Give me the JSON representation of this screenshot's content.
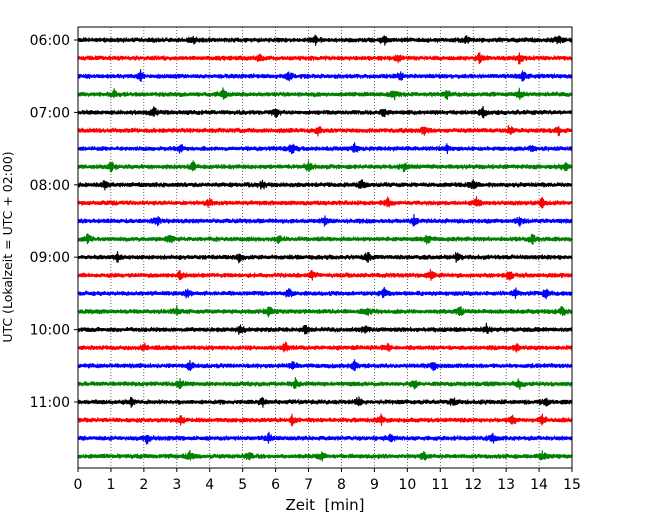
{
  "chart_data": {
    "type": "line",
    "title": "",
    "xlabel": "Zeit  [min]",
    "ylabel": "UTC (Lokalzeit = UTC + 02:00)",
    "xlim": [
      0,
      15
    ],
    "x_ticks": [
      0,
      1,
      2,
      3,
      4,
      5,
      6,
      7,
      8,
      9,
      10,
      11,
      12,
      13,
      14,
      15
    ],
    "x_tick_labels": [
      "0",
      "1",
      "2",
      "3",
      "4",
      "5",
      "6",
      "7",
      "8",
      "9",
      "10",
      "11",
      "12",
      "13",
      "14",
      "15"
    ],
    "y_tick_labels": [
      "06:00",
      "07:00",
      "08:00",
      "09:00",
      "10:00",
      "11:00"
    ],
    "grid": {
      "x": true,
      "style": "dotted",
      "y": false
    },
    "trace_colors": [
      "#000000",
      "#ff0000",
      "#0000ff",
      "#008000"
    ],
    "traces_per_hour": 4,
    "traces": [
      {
        "time": "06:00",
        "color": "#000000",
        "events_min": [
          3.5,
          7.2,
          9.3,
          11.8,
          14.6
        ]
      },
      {
        "time": "06:15",
        "color": "#ff0000",
        "events_min": [
          5.5,
          9.7,
          12.2,
          13.4
        ]
      },
      {
        "time": "06:30",
        "color": "#0000ff",
        "events_min": [
          1.9,
          6.4,
          9.8,
          13.5
        ]
      },
      {
        "time": "06:45",
        "color": "#008000",
        "events_min": [
          1.1,
          4.4,
          9.6,
          11.2,
          13.4
        ]
      },
      {
        "time": "07:00",
        "color": "#000000",
        "events_min": [
          2.3,
          6.0,
          9.3,
          12.3
        ]
      },
      {
        "time": "07:15",
        "color": "#ff0000",
        "events_min": [
          7.3,
          10.5,
          13.1,
          14.6
        ]
      },
      {
        "time": "07:30",
        "color": "#0000ff",
        "events_min": [
          3.1,
          6.5,
          8.4,
          11.2,
          13.8
        ]
      },
      {
        "time": "07:45",
        "color": "#008000",
        "events_min": [
          1.0,
          3.5,
          7.0,
          9.9,
          14.8
        ]
      },
      {
        "time": "08:00",
        "color": "#000000",
        "events_min": [
          0.8,
          5.6,
          8.6,
          12.0
        ]
      },
      {
        "time": "08:15",
        "color": "#ff0000",
        "events_min": [
          4.0,
          9.4,
          12.1,
          14.1
        ]
      },
      {
        "time": "08:30",
        "color": "#0000ff",
        "events_min": [
          2.4,
          7.5,
          10.2,
          13.4
        ]
      },
      {
        "time": "08:45",
        "color": "#008000",
        "events_min": [
          0.3,
          2.8,
          6.1,
          10.6,
          13.8
        ]
      },
      {
        "time": "09:00",
        "color": "#000000",
        "events_min": [
          1.2,
          4.9,
          8.8,
          11.5
        ]
      },
      {
        "time": "09:15",
        "color": "#ff0000",
        "events_min": [
          3.1,
          7.1,
          10.7,
          13.1
        ]
      },
      {
        "time": "09:30",
        "color": "#0000ff",
        "events_min": [
          3.3,
          6.4,
          9.3,
          13.3,
          14.2
        ]
      },
      {
        "time": "09:45",
        "color": "#008000",
        "events_min": [
          3.0,
          5.8,
          8.8,
          11.6,
          14.7
        ]
      },
      {
        "time": "10:00",
        "color": "#000000",
        "events_min": [
          4.9,
          6.9,
          8.7,
          12.4
        ]
      },
      {
        "time": "10:15",
        "color": "#ff0000",
        "events_min": [
          2.0,
          6.3,
          9.4,
          13.3
        ]
      },
      {
        "time": "10:30",
        "color": "#0000ff",
        "events_min": [
          3.4,
          6.5,
          8.4,
          10.8
        ]
      },
      {
        "time": "10:45",
        "color": "#008000",
        "events_min": [
          3.1,
          6.6,
          10.2,
          13.4
        ]
      },
      {
        "time": "11:00",
        "color": "#000000",
        "events_min": [
          1.6,
          5.6,
          8.5,
          11.4,
          14.2
        ]
      },
      {
        "time": "11:15",
        "color": "#ff0000",
        "events_min": [
          3.1,
          6.5,
          9.2,
          13.2,
          14.1
        ]
      },
      {
        "time": "11:30",
        "color": "#0000ff",
        "events_min": [
          2.1,
          5.8,
          9.5,
          12.6
        ]
      },
      {
        "time": "11:45",
        "color": "#008000",
        "events_min": [
          3.4,
          5.2,
          7.4,
          10.5,
          14.1
        ]
      }
    ]
  }
}
